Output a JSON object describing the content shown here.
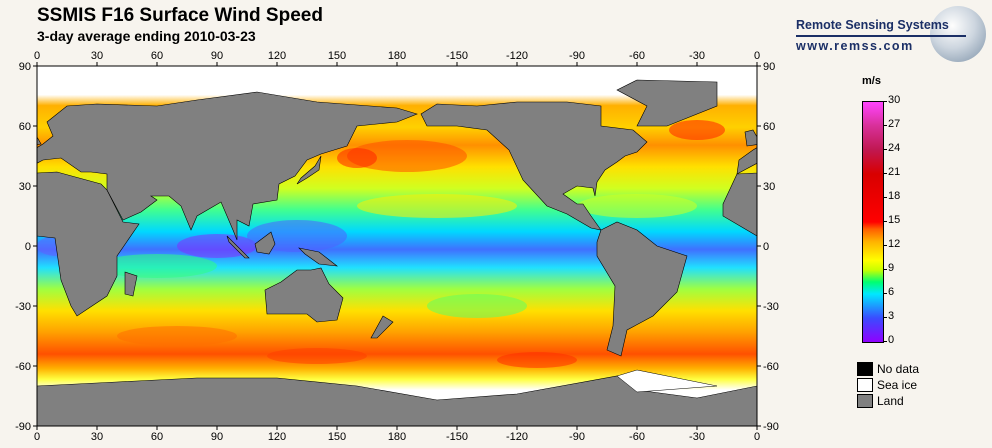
{
  "header": {
    "title": "SSMIS F16 Surface Wind Speed",
    "subtitle": "3-day average ending 2010-03-23"
  },
  "logo": {
    "name": "Remote Sensing Systems",
    "url": "www.remss.com"
  },
  "map": {
    "lon_tick_labels": [
      "0",
      "30",
      "60",
      "90",
      "120",
      "150",
      "180",
      "-150",
      "-120",
      "-90",
      "-60",
      "-30",
      "0"
    ],
    "lat_tick_labels": [
      "90",
      "60",
      "30",
      "0",
      "-30",
      "-60",
      "-90"
    ]
  },
  "colorbar": {
    "unit": "m/s",
    "tick_labels": [
      "30",
      "27",
      "24",
      "21",
      "18",
      "15",
      "12",
      "9",
      "6",
      "3",
      "0"
    ],
    "range": [
      0,
      30
    ]
  },
  "legend": [
    {
      "label": "No data",
      "color": "#000000"
    },
    {
      "label": "Sea ice",
      "color": "#ffffff"
    },
    {
      "label": "Land",
      "color": "#808080"
    }
  ]
}
